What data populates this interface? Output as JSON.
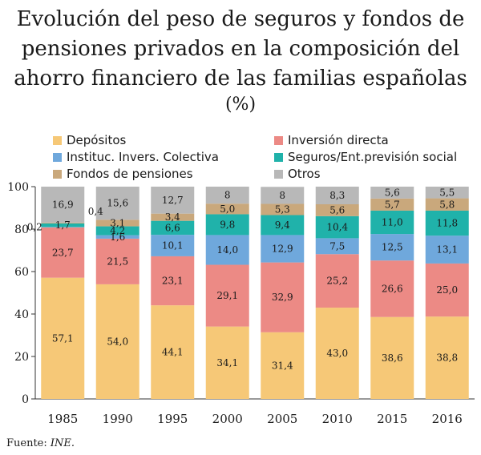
{
  "title_lines": [
    "Evolución del peso de seguros y fondos de",
    "pensiones privados en la composición del",
    "ahorro financiero de las familias españolas"
  ],
  "subtitle": "(%)",
  "source_label": "Fuente:",
  "source_name": "INE.",
  "chart_data": {
    "type": "bar",
    "stacked": true,
    "categories": [
      "1985",
      "1990",
      "1995",
      "2000",
      "2005",
      "2010",
      "2015",
      "2016"
    ],
    "ylim": [
      0,
      100
    ],
    "yticks": [
      "0",
      "20",
      "40",
      "60",
      "80",
      "100"
    ],
    "legend_position": "top",
    "series": [
      {
        "name": "Depósitos",
        "color": "#f6c877",
        "values": [
          57.1,
          54.0,
          44.1,
          34.1,
          31.4,
          43.0,
          38.6,
          38.8
        ],
        "labels": [
          "57,1",
          "54,0",
          "44,1",
          "34,1",
          "31,4",
          "43,0",
          "38,6",
          "38,8"
        ]
      },
      {
        "name": "Inversión directa",
        "color": "#ec8a85",
        "values": [
          23.7,
          21.5,
          23.1,
          29.1,
          32.9,
          25.2,
          26.6,
          25.0
        ],
        "labels": [
          "23,7",
          "21,5",
          "23,1",
          "29,1",
          "32,9",
          "25,2",
          "26,6",
          "25,0"
        ]
      },
      {
        "name": "Instituc. Invers. Colectiva",
        "color": "#6fa8dc",
        "values": [
          0.2,
          1.6,
          10.1,
          14.0,
          12.9,
          7.5,
          12.5,
          13.1
        ],
        "labels": [
          "0,2",
          "1,6",
          "10,1",
          "14,0",
          "12,9",
          "7,5",
          "12,5",
          "13,1"
        ]
      },
      {
        "name": "Seguros/Ent.previsión social",
        "color": "#20b2aa",
        "values": [
          1.7,
          4.2,
          6.6,
          9.8,
          9.4,
          10.4,
          11.0,
          11.8
        ],
        "labels": [
          "1,7",
          "4,2",
          "6,6",
          "9,8",
          "9,4",
          "10,4",
          "11,0",
          "11,8"
        ]
      },
      {
        "name": "Fondos de pensiones",
        "color": "#c9a87c",
        "values": [
          0.4,
          3.1,
          3.4,
          5.0,
          5.3,
          5.6,
          5.7,
          5.8
        ],
        "labels": [
          "0,4",
          "3,1",
          "3,4",
          "5,0",
          "5,3",
          "5,6",
          "5,7",
          "5,8"
        ]
      },
      {
        "name": "Otros",
        "color": "#b8b8b8",
        "values": [
          16.9,
          15.6,
          12.7,
          8,
          8,
          8.3,
          5.6,
          5.5
        ],
        "labels": [
          "16,9",
          "15,6",
          "12,7",
          "8",
          "8",
          "8,3",
          "5,6",
          "5,5"
        ]
      }
    ]
  }
}
